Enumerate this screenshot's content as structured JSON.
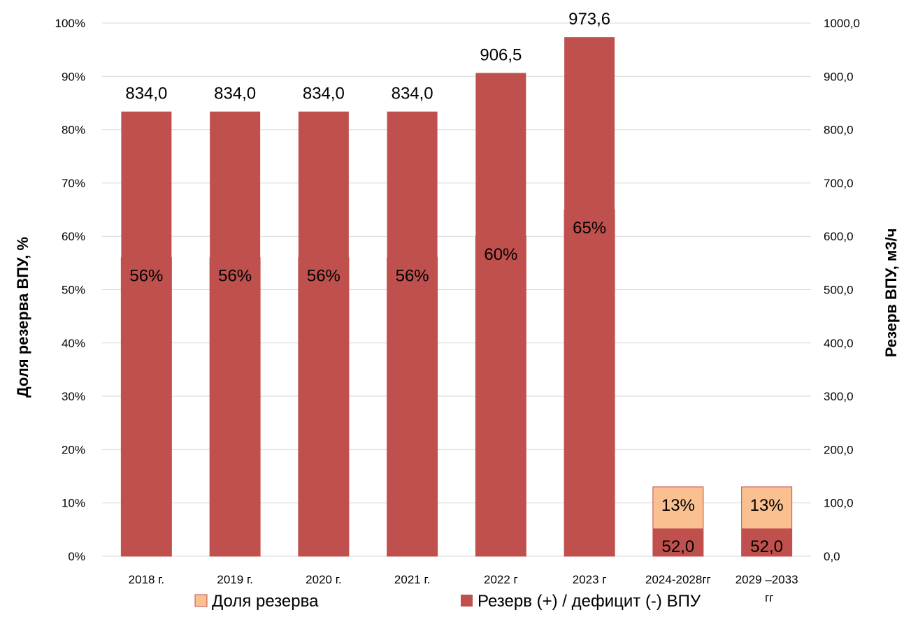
{
  "chart_data": {
    "type": "bar",
    "title": "",
    "categories": [
      "2018 г.",
      "2019 г.",
      "2020 г.",
      "2021 г.",
      "2022 г",
      "2023 г",
      "2024-2028гг",
      "2029 –2033"
    ],
    "categories_extra_text": "гг",
    "series": [
      {
        "name": "Доля резерва",
        "axis": "left",
        "color": "#FAC090",
        "values": [
          0.56,
          0.56,
          0.56,
          0.56,
          0.6,
          0.65,
          0.13,
          0.13
        ],
        "labels": [
          "56%",
          "56%",
          "56%",
          "56%",
          "60%",
          "65%",
          "13%",
          "13%"
        ]
      },
      {
        "name": "Резерв (+) / дефицит (-) ВПУ",
        "axis": "right",
        "color": "#C0504D",
        "values": [
          834.0,
          834.0,
          834.0,
          834.0,
          906.5,
          973.6,
          52.0,
          52.0
        ],
        "labels": [
          "834,0",
          "834,0",
          "834,0",
          "834,0",
          "906,5",
          "973,6",
          "52,0",
          "52,0"
        ]
      }
    ],
    "y_left": {
      "label": "Доля резерва ВПУ, %",
      "range": [
        0,
        1
      ],
      "ticks": [
        "0%",
        "10%",
        "20%",
        "30%",
        "40%",
        "50%",
        "60%",
        "70%",
        "80%",
        "90%",
        "100%"
      ]
    },
    "y_right": {
      "label": "Резерв ВПУ, м3/ч",
      "range": [
        0,
        1000
      ],
      "ticks": [
        "0,0",
        "100,0",
        "200,0",
        "300,0",
        "400,0",
        "500,0",
        "600,0",
        "700,0",
        "800,0",
        "900,0",
        "1000,0"
      ]
    },
    "grid": true,
    "legend_position": "bottom"
  }
}
